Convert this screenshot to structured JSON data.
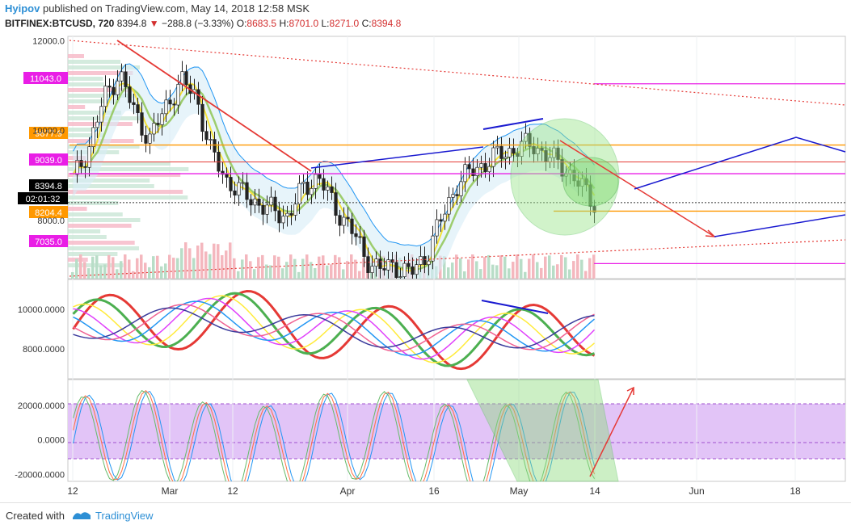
{
  "header": {
    "author": "Hyipov",
    "published_text": "published on TradingView.com, May 14, 2018 12:58 MSK",
    "symbol": "BITFINEX:BTCUSD, 720",
    "last": "8394.8",
    "change": "−288.8 (−3.33%)",
    "open_label": "O:",
    "open": "8683.5",
    "high_label": "H:",
    "high": "8701.0",
    "low_label": "L:",
    "low": "8271.0",
    "close_label": "C:",
    "close": "8394.8"
  },
  "footer": {
    "created_with": "Created with",
    "brand": "TradingView"
  },
  "chart_data": [
    {
      "type": "candlestick",
      "panel": "price",
      "y_ticks": [
        "12000.0",
        "10000.0",
        "8000.0"
      ],
      "ylim": [
        6700,
        12100
      ],
      "price_badges": [
        {
          "label": "11043.0",
          "value": 11043,
          "color": "#e91ee6"
        },
        {
          "label": "9677.9",
          "value": 9677.9,
          "color": "#ff9800"
        },
        {
          "label": "9039.0",
          "value": 9039,
          "color": "#e91ee6"
        },
        {
          "label": "8394.8",
          "value": 8394.8,
          "color": "#000000"
        },
        {
          "label": "02:01:32",
          "value": 8200,
          "color": "#000000"
        },
        {
          "label": "8204.4",
          "value": 8204.4,
          "color": "#ff9800"
        },
        {
          "label": "7035.0",
          "value": 7035,
          "color": "#e91ee6"
        }
      ],
      "horizontal_levels": [
        {
          "value": 11043,
          "color": "#e91ee6"
        },
        {
          "value": 9677.9,
          "color": "#ff9800"
        },
        {
          "value": 9039,
          "color": "#e91ee6"
        },
        {
          "value": 8204.4,
          "color": "#ff9800"
        },
        {
          "value": 7035,
          "color": "#e91ee6"
        }
      ],
      "close_series": [
        8900,
        9600,
        10700,
        11300,
        10400,
        9800,
        10500,
        11100,
        10800,
        9500,
        8900,
        8600,
        8400,
        8200,
        8100,
        8700,
        9000,
        8300,
        7900,
        7200,
        6900,
        7000,
        6800,
        7200,
        8000,
        8800,
        9100,
        9300,
        9500,
        9600,
        9700,
        9400,
        9200,
        8800,
        8400
      ]
    },
    {
      "type": "line",
      "panel": "indicator_1",
      "y_ticks": [
        "10000.0000",
        "8000.0000"
      ],
      "ylim": [
        6500,
        11500
      ]
    },
    {
      "type": "line",
      "panel": "oscillator",
      "y_ticks": [
        "20000.0000",
        "0.0000",
        "-20000.0000"
      ],
      "ylim": [
        -24000,
        35000
      ],
      "bands": [
        25000,
        0,
        -10000
      ]
    }
  ],
  "x_axis": {
    "ticks": [
      "12",
      "Mar",
      "12",
      "Apr",
      "16",
      "May",
      "14",
      "Jun",
      "18"
    ]
  }
}
